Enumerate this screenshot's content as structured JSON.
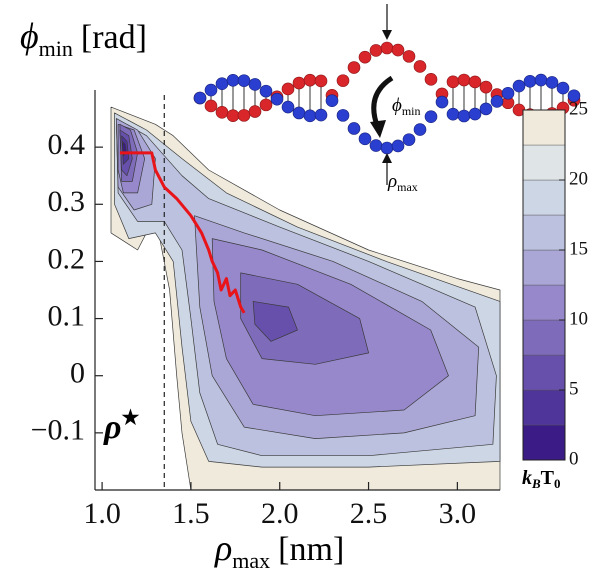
{
  "chart_data": {
    "type": "contour",
    "x_label": {
      "symbol": "ρ",
      "subscript": "max",
      "unit": "[nm]"
    },
    "y_label": {
      "symbol": "ϕ",
      "subscript": "min",
      "unit": "[rad]"
    },
    "xlim": [
      0.96,
      3.24
    ],
    "ylim": [
      -0.2,
      0.5
    ],
    "xticks": [
      {
        "value": 1.0,
        "label": "1.0"
      },
      1.5,
      {
        "value": 2.0,
        "label": "2.0"
      },
      2.5,
      {
        "value": 3.0,
        "label": "3.0"
      }
    ],
    "yticks": [
      {
        "value": -0.1,
        "label": "−0.1"
      },
      0,
      0.1,
      0.2,
      0.3,
      0.4
    ],
    "colorbar": {
      "levels": [
        0,
        2.5,
        5,
        7.5,
        10,
        12.5,
        15,
        17.5,
        20,
        22.5,
        25
      ],
      "colors": [
        "#3b1b86",
        "#4f3599",
        "#6750ab",
        "#7e6cbb",
        "#9688cb",
        "#aaa6d6",
        "#bcc1df",
        "#cdd6e4",
        "#dfe5e6",
        "#efeadc"
      ],
      "ticks": [
        0,
        5,
        10,
        15,
        20,
        25
      ],
      "label": {
        "base1": "k",
        "sub1": "B",
        "base2": "T",
        "sub2": "0"
      }
    },
    "regions": [
      {
        "level": 25,
        "x": [
          1.05,
          1.3,
          1.4,
          1.6,
          2.0,
          2.5,
          3.0,
          3.24,
          3.24,
          1.5,
          1.45,
          1.42,
          1.38,
          1.3,
          1.2,
          1.05
        ],
        "y": [
          0.47,
          0.44,
          0.42,
          0.36,
          0.29,
          0.22,
          0.17,
          0.15,
          -0.2,
          -0.2,
          -0.1,
          0.0,
          0.15,
          0.28,
          0.22,
          0.25
        ]
      },
      {
        "level": 20,
        "x": [
          1.07,
          1.25,
          1.45,
          1.7,
          2.1,
          2.6,
          3.24,
          3.24,
          2.5,
          1.9,
          1.6,
          1.5,
          1.45,
          1.4,
          1.3,
          1.15,
          1.07
        ],
        "y": [
          0.46,
          0.43,
          0.38,
          0.32,
          0.26,
          0.2,
          0.13,
          -0.15,
          -0.16,
          -0.16,
          -0.15,
          -0.08,
          0.05,
          0.2,
          0.25,
          0.24,
          0.3
        ]
      },
      {
        "level": 17.5,
        "x": [
          1.08,
          1.25,
          1.45,
          1.6,
          2.0,
          2.5,
          3.1,
          3.22,
          3.2,
          2.5,
          1.9,
          1.65,
          1.55,
          1.5,
          1.45,
          1.35,
          1.2,
          1.09
        ],
        "y": [
          0.45,
          0.42,
          0.35,
          0.31,
          0.26,
          0.2,
          0.12,
          0.0,
          -0.12,
          -0.14,
          -0.14,
          -0.12,
          -0.03,
          0.1,
          0.22,
          0.27,
          0.27,
          0.32
        ]
      },
      {
        "level": 15,
        "x": [
          1.52,
          1.8,
          2.3,
          2.8,
          3.12,
          3.1,
          2.7,
          2.2,
          1.8,
          1.62,
          1.55
        ],
        "y": [
          0.28,
          0.25,
          0.2,
          0.13,
          0.05,
          -0.07,
          -0.1,
          -0.11,
          -0.09,
          0.0,
          0.12
        ]
      },
      {
        "level": 15,
        "x": [
          1.08,
          1.2,
          1.3,
          1.28,
          1.18,
          1.09
        ],
        "y": [
          0.45,
          0.43,
          0.38,
          0.3,
          0.29,
          0.33
        ]
      },
      {
        "level": 12.5,
        "x": [
          1.62,
          1.9,
          2.4,
          2.85,
          2.95,
          2.7,
          2.2,
          1.85,
          1.7,
          1.63
        ],
        "y": [
          0.24,
          0.22,
          0.16,
          0.08,
          0.0,
          -0.06,
          -0.07,
          -0.05,
          0.03,
          0.13
        ]
      },
      {
        "level": 12.5,
        "x": [
          1.09,
          1.18,
          1.24,
          1.2,
          1.12,
          1.09
        ],
        "y": [
          0.44,
          0.43,
          0.38,
          0.32,
          0.32,
          0.36
        ]
      },
      {
        "level": 10,
        "x": [
          1.78,
          2.1,
          2.45,
          2.5,
          2.2,
          1.9,
          1.78
        ],
        "y": [
          0.18,
          0.16,
          0.1,
          0.04,
          0.02,
          0.03,
          0.1
        ]
      },
      {
        "level": 10,
        "x": [
          1.1,
          1.16,
          1.2,
          1.17,
          1.11
        ],
        "y": [
          0.44,
          0.43,
          0.39,
          0.34,
          0.34
        ]
      },
      {
        "level": 7.5,
        "x": [
          1.85,
          2.05,
          2.1,
          1.95,
          1.86
        ],
        "y": [
          0.13,
          0.12,
          0.08,
          0.06,
          0.09
        ]
      },
      {
        "level": 7.5,
        "x": [
          1.1,
          1.15,
          1.17,
          1.14,
          1.11
        ],
        "y": [
          0.43,
          0.42,
          0.38,
          0.35,
          0.36
        ]
      },
      {
        "level": 5,
        "x": [
          1.11,
          1.14,
          1.15,
          1.12
        ],
        "y": [
          0.42,
          0.41,
          0.38,
          0.37
        ]
      },
      {
        "level": 2.5,
        "x": [
          1.115,
          1.13,
          1.135,
          1.12
        ],
        "y": [
          0.41,
          0.405,
          0.39,
          0.385
        ]
      }
    ],
    "path": {
      "color": "#e8141a",
      "x": [
        1.1,
        1.28,
        1.3,
        1.35,
        1.42,
        1.5,
        1.56,
        1.6,
        1.62,
        1.65,
        1.67,
        1.7,
        1.72,
        1.75,
        1.78,
        1.8
      ],
      "y": [
        0.39,
        0.39,
        0.36,
        0.33,
        0.31,
        0.28,
        0.25,
        0.22,
        0.2,
        0.18,
        0.15,
        0.17,
        0.14,
        0.15,
        0.12,
        0.11
      ]
    },
    "threshold": {
      "value": 1.35,
      "symbol": "ρ",
      "mark": "★"
    },
    "inset": {
      "angle_label": {
        "symbol": "ϕ",
        "subscript": "min"
      },
      "radius_label": {
        "symbol": "ρ",
        "subscript": "max"
      }
    }
  }
}
